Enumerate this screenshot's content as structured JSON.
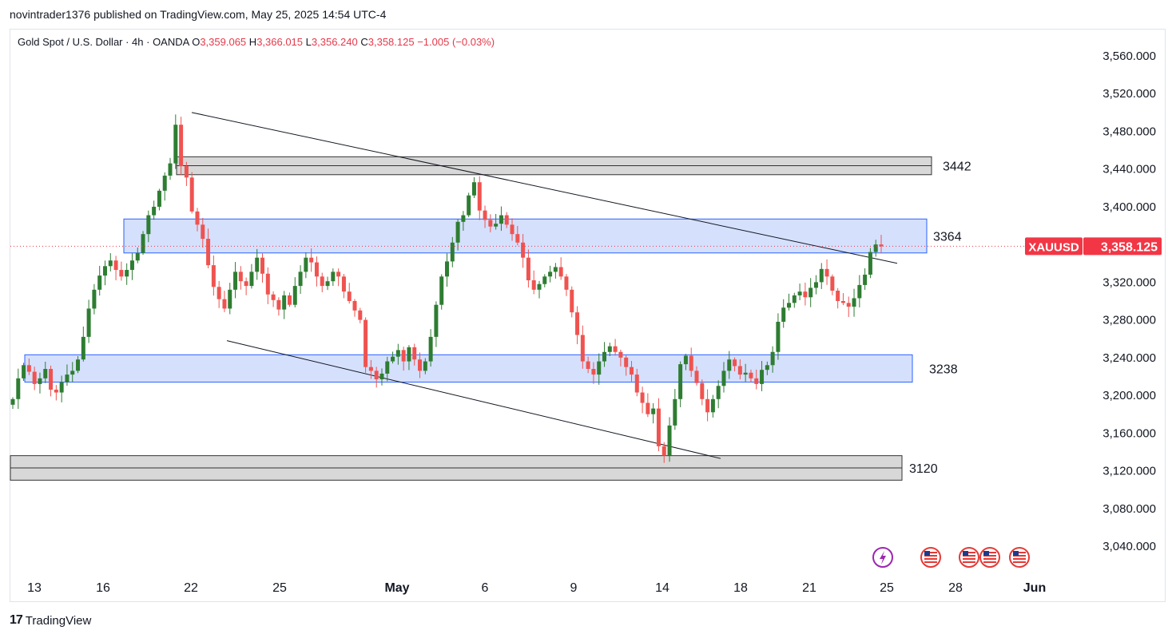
{
  "publish_info": "novintrader1376 published on TradingView.com, May 25, 2025 14:54 UTC-4",
  "header": {
    "symbol": "Gold Spot / U.S. Dollar · 4h · OANDA",
    "o_label": "O",
    "o_value": "3,359.065",
    "h_label": "H",
    "h_value": "3,366.015",
    "l_label": "L",
    "l_value": "3,356.240",
    "c_label": "C",
    "c_value": "3,358.125",
    "change": "−1.005 (−0.03%)"
  },
  "footer": {
    "logo_mark": "17",
    "brand": "TradingView"
  },
  "price_tag": {
    "ticker": "XAUUSD",
    "price": "3,358.125"
  },
  "colors": {
    "up": "#26a69a",
    "up_body": "#2e7d32",
    "down": "#ef5350",
    "zone_blue": "#d5e0fd",
    "zone_gray": "#d8d8d8",
    "tag_red": "#f23645"
  },
  "chart_data": {
    "type": "candlestick",
    "title": "Gold Spot / U.S. Dollar · 4h · OANDA",
    "y_ticks": [
      "3,560.000",
      "3,520.000",
      "3,480.000",
      "3,440.000",
      "3,400.000",
      "3,360.000",
      "3,320.000",
      "3,280.000",
      "3,240.000",
      "3,200.000",
      "3,160.000",
      "3,120.000",
      "3,080.000",
      "3,040.000"
    ],
    "ylim": [
      3010,
      3590
    ],
    "x_ticks": [
      "13",
      "16",
      "22",
      "25",
      "May",
      "6",
      "9",
      "14",
      "18",
      "21",
      "25",
      "28",
      "Jun"
    ],
    "zones": [
      {
        "label": "3442",
        "type": "resistance",
        "low": 3434,
        "high": 3453,
        "color": "gray"
      },
      {
        "label": "3364",
        "type": "supply",
        "low": 3351,
        "high": 3387,
        "color": "blue"
      },
      {
        "label": "3238",
        "type": "demand",
        "low": 3214,
        "high": 3243,
        "color": "blue"
      },
      {
        "label": "3120",
        "type": "support",
        "low": 3110,
        "high": 3136,
        "color": "gray"
      }
    ],
    "trendlines": [
      {
        "name": "upper channel",
        "from": {
          "x": "Apr 22",
          "y": 3500
        },
        "to": {
          "x": "May 23",
          "y": 3340
        }
      },
      {
        "name": "lower channel",
        "from": {
          "x": "Apr 23",
          "y": 3258
        },
        "to": {
          "x": "May 16",
          "y": 3133
        }
      }
    ],
    "last_price": 3358.125,
    "closes": [
      3196,
      3218,
      3232,
      3225,
      3212,
      3218,
      3228,
      3206,
      3203,
      3214,
      3222,
      3226,
      3238,
      3262,
      3292,
      3312,
      3327,
      3337,
      3343,
      3333,
      3326,
      3333,
      3343,
      3351,
      3371,
      3391,
      3400,
      3417,
      3433,
      3446,
      3487,
      3443,
      3431,
      3395,
      3381,
      3366,
      3338,
      3315,
      3302,
      3292,
      3312,
      3331,
      3321,
      3316,
      3331,
      3346,
      3329,
      3307,
      3301,
      3291,
      3306,
      3296,
      3316,
      3331,
      3346,
      3341,
      3326,
      3316,
      3321,
      3331,
      3326,
      3310,
      3300,
      3290,
      3280,
      3230,
      3226,
      3217,
      3223,
      3236,
      3241,
      3248,
      3236,
      3251,
      3238,
      3226,
      3236,
      3262,
      3296,
      3326,
      3342,
      3362,
      3384,
      3391,
      3412,
      3426,
      3396,
      3386,
      3379,
      3382,
      3391,
      3381,
      3371,
      3362,
      3346,
      3322,
      3312,
      3318,
      3326,
      3331,
      3336,
      3326,
      3312,
      3288,
      3264,
      3236,
      3228,
      3222,
      3236,
      3246,
      3252,
      3246,
      3240,
      3230,
      3222,
      3203,
      3192,
      3180,
      3186,
      3146,
      3136,
      3168,
      3196,
      3233,
      3242,
      3226,
      3213,
      3196,
      3182,
      3196,
      3210,
      3226,
      3238,
      3231,
      3222,
      3224,
      3218,
      3212,
      3227,
      3232,
      3246,
      3278,
      3293,
      3298,
      3306,
      3310,
      3304,
      3314,
      3320,
      3334,
      3326,
      3311,
      3300,
      3298,
      3294,
      3303,
      3317,
      3328,
      3352,
      3360,
      3358
    ]
  }
}
